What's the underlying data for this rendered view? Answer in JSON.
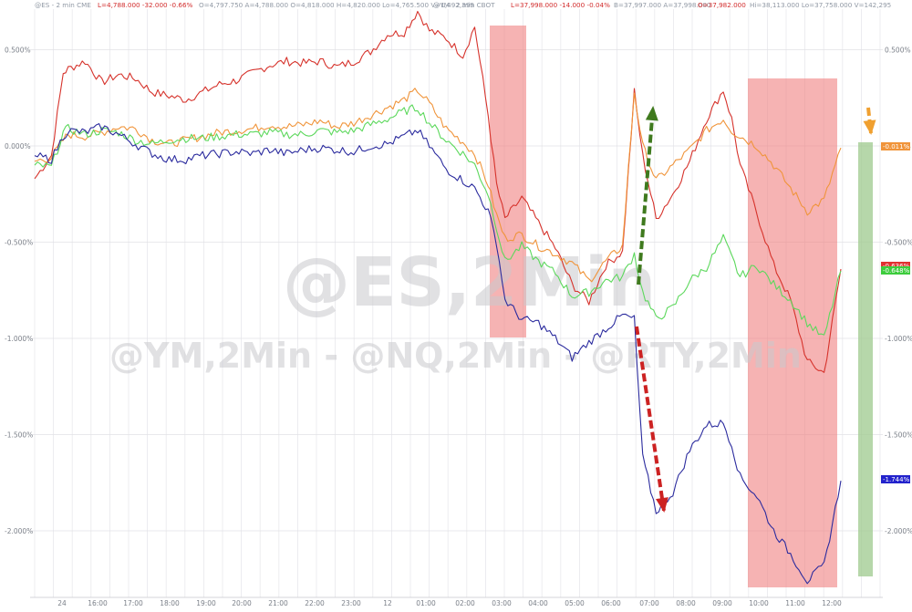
{
  "header": {
    "es": "@ES - 2 min  CME",
    "es_last": "L=4,788.000  -32.000  -0.66%",
    "es_rest": "O=4,797.750  A=4,788.000  O=4,818.000  H=4,820.000  Lo=4,765.500  V=1,492,399",
    "ym": "@YM - 2 min  CBOT",
    "ym_last": "L=37,998.000  -14.000  -0.04%",
    "ym_rest": "B=37,997.000  A=37,998.000",
    "ym_open": "O=37,982.000",
    "ym_tail": "Hi=38,113.000  Lo=37,758.000  V=142,295"
  },
  "watermark": {
    "main": "@ES,2Min",
    "secondary": "@YM,2Min - @NQ,2Min - @RTY,2Min"
  },
  "chart_data": {
    "type": "line",
    "x_ticks": [
      "24",
      "16:00",
      "17:00",
      "18:00",
      "19:00",
      "20:00",
      "21:00",
      "22:00",
      "23:00",
      "12",
      "01:00",
      "02:00",
      "03:00",
      "04:00",
      "05:00",
      "06:00",
      "07:00",
      "08:00",
      "09:00",
      "10:00",
      "11:00",
      "12:00"
    ],
    "y_ticks_left": [
      "0.500%",
      "0.000%",
      "-0.500%",
      "-1.000%",
      "-1.500%",
      "-2.000%"
    ],
    "y_ticks_right": [
      "0.500%",
      "0.000%",
      "-0.500%",
      "-1.000%",
      "-1.500%",
      "-2.000%"
    ],
    "ylim": [
      -2.28,
      0.72
    ],
    "grid": true,
    "x_index_range": [
      0,
      46
    ],
    "series": [
      {
        "color": "#d6322b",
        "end_label": "-0.636%",
        "points": [
          [
            0,
            -0.17
          ],
          [
            1,
            -0.05
          ],
          [
            1.7,
            0.38
          ],
          [
            2,
            0.4
          ],
          [
            3,
            0.44
          ],
          [
            4,
            0.33
          ],
          [
            5,
            0.37
          ],
          [
            6,
            0.35
          ],
          [
            7,
            0.28
          ],
          [
            8,
            0.26
          ],
          [
            9,
            0.24
          ],
          [
            10,
            0.28
          ],
          [
            11,
            0.32
          ],
          [
            12,
            0.34
          ],
          [
            13,
            0.38
          ],
          [
            14,
            0.42
          ],
          [
            15,
            0.44
          ],
          [
            16,
            0.43
          ],
          [
            17,
            0.44
          ],
          [
            18,
            0.41
          ],
          [
            19,
            0.44
          ],
          [
            20,
            0.49
          ],
          [
            21,
            0.58
          ],
          [
            22,
            0.59
          ],
          [
            22.8,
            0.7
          ],
          [
            23.5,
            0.6
          ],
          [
            24.5,
            0.56
          ],
          [
            25.5,
            0.47
          ],
          [
            26.2,
            0.62
          ],
          [
            27,
            0.16
          ],
          [
            27.5,
            -0.2
          ],
          [
            28,
            -0.38
          ],
          [
            29,
            -0.27
          ],
          [
            30,
            -0.4
          ],
          [
            31,
            -0.53
          ],
          [
            32,
            -0.72
          ],
          [
            33,
            -0.81
          ],
          [
            34,
            -0.62
          ],
          [
            35,
            -0.55
          ],
          [
            35.7,
            0.28
          ],
          [
            36.2,
            -0.05
          ],
          [
            37,
            -0.38
          ],
          [
            38,
            -0.25
          ],
          [
            39,
            -0.08
          ],
          [
            40,
            0.14
          ],
          [
            41,
            0.29
          ],
          [
            41.5,
            0.14
          ],
          [
            42,
            -0.1
          ],
          [
            43,
            -0.35
          ],
          [
            44,
            -0.62
          ],
          [
            45,
            -0.8
          ],
          [
            46,
            -1.12
          ],
          [
            47,
            -1.18
          ],
          [
            48,
            -0.64
          ]
        ]
      },
      {
        "color": "#f0943a",
        "end_label": "-0.011%",
        "points": [
          [
            0,
            -0.08
          ],
          [
            1,
            -0.06
          ],
          [
            1.7,
            0.03
          ],
          [
            2,
            0.06
          ],
          [
            3,
            0.05
          ],
          [
            4,
            0.07
          ],
          [
            5,
            0.1
          ],
          [
            6,
            0.09
          ],
          [
            7,
            0.03
          ],
          [
            8,
            0.01
          ],
          [
            9,
            0.03
          ],
          [
            10,
            0.05
          ],
          [
            11,
            0.07
          ],
          [
            12,
            0.08
          ],
          [
            13,
            0.09
          ],
          [
            14,
            0.11
          ],
          [
            15,
            0.1
          ],
          [
            16,
            0.11
          ],
          [
            17,
            0.13
          ],
          [
            18,
            0.1
          ],
          [
            19,
            0.12
          ],
          [
            20,
            0.16
          ],
          [
            21,
            0.2
          ],
          [
            22,
            0.24
          ],
          [
            22.8,
            0.29
          ],
          [
            23.5,
            0.22
          ],
          [
            24.5,
            0.09
          ],
          [
            25.5,
            0.02
          ],
          [
            26.2,
            -0.04
          ],
          [
            27,
            -0.2
          ],
          [
            27.5,
            -0.36
          ],
          [
            28,
            -0.48
          ],
          [
            29,
            -0.46
          ],
          [
            30,
            -0.52
          ],
          [
            31,
            -0.56
          ],
          [
            32,
            -0.61
          ],
          [
            33,
            -0.7
          ],
          [
            34,
            -0.6
          ],
          [
            35,
            -0.52
          ],
          [
            35.7,
            0.28
          ],
          [
            36.2,
            0.0
          ],
          [
            37,
            -0.18
          ],
          [
            38,
            -0.1
          ],
          [
            39,
            -0.02
          ],
          [
            40,
            0.08
          ],
          [
            41,
            0.14
          ],
          [
            41.5,
            0.08
          ],
          [
            42,
            0.05
          ],
          [
            43,
            0.0
          ],
          [
            44,
            -0.1
          ],
          [
            45,
            -0.22
          ],
          [
            46,
            -0.34
          ],
          [
            47,
            -0.28
          ],
          [
            48,
            -0.01
          ]
        ]
      },
      {
        "color": "#5cd85c",
        "end_label": "-0.648%",
        "points": [
          [
            0,
            -0.1
          ],
          [
            1,
            -0.11
          ],
          [
            1.7,
            0.07
          ],
          [
            2,
            0.09
          ],
          [
            3,
            0.06
          ],
          [
            4,
            0.08
          ],
          [
            5,
            0.07
          ],
          [
            6,
            0.03
          ],
          [
            7,
            0.01
          ],
          [
            8,
            0.03
          ],
          [
            9,
            0.04
          ],
          [
            10,
            0.04
          ],
          [
            11,
            0.05
          ],
          [
            12,
            0.06
          ],
          [
            13,
            0.06
          ],
          [
            14,
            0.07
          ],
          [
            15,
            0.06
          ],
          [
            16,
            0.06
          ],
          [
            17,
            0.08
          ],
          [
            18,
            0.07
          ],
          [
            19,
            0.08
          ],
          [
            20,
            0.11
          ],
          [
            21,
            0.14
          ],
          [
            22,
            0.18
          ],
          [
            22.8,
            0.2
          ],
          [
            23.5,
            0.12
          ],
          [
            24.5,
            0.03
          ],
          [
            25.5,
            -0.04
          ],
          [
            26.2,
            -0.1
          ],
          [
            27,
            -0.25
          ],
          [
            27.5,
            -0.42
          ],
          [
            28,
            -0.6
          ],
          [
            29,
            -0.52
          ],
          [
            30,
            -0.6
          ],
          [
            31,
            -0.66
          ],
          [
            32,
            -0.78
          ],
          [
            33,
            -0.76
          ],
          [
            34,
            -0.7
          ],
          [
            35,
            -0.68
          ],
          [
            35.7,
            -0.56
          ],
          [
            36.2,
            -0.76
          ],
          [
            37,
            -0.9
          ],
          [
            38,
            -0.84
          ],
          [
            39,
            -0.7
          ],
          [
            40,
            -0.63
          ],
          [
            41,
            -0.48
          ],
          [
            41.5,
            -0.58
          ],
          [
            42,
            -0.68
          ],
          [
            43,
            -0.62
          ],
          [
            44,
            -0.72
          ],
          [
            45,
            -0.8
          ],
          [
            46,
            -0.92
          ],
          [
            47,
            -1.0
          ],
          [
            48,
            -0.65
          ]
        ]
      },
      {
        "color": "#2b2b9e",
        "end_label": "-1.744%",
        "points": [
          [
            0,
            -0.05
          ],
          [
            1,
            -0.07
          ],
          [
            1.7,
            0.05
          ],
          [
            2,
            0.08
          ],
          [
            3,
            0.07
          ],
          [
            4,
            0.1
          ],
          [
            5,
            0.06
          ],
          [
            6,
            0.01
          ],
          [
            7,
            -0.04
          ],
          [
            8,
            -0.07
          ],
          [
            9,
            -0.07
          ],
          [
            10,
            -0.05
          ],
          [
            11,
            -0.04
          ],
          [
            12,
            -0.03
          ],
          [
            13,
            -0.04
          ],
          [
            14,
            -0.02
          ],
          [
            15,
            -0.04
          ],
          [
            16,
            -0.02
          ],
          [
            17,
            -0.01
          ],
          [
            18,
            -0.02
          ],
          [
            19,
            -0.03
          ],
          [
            20,
            0.0
          ],
          [
            21,
            0.01
          ],
          [
            22,
            0.05
          ],
          [
            22.8,
            0.08
          ],
          [
            23.5,
            0.0
          ],
          [
            24.5,
            -0.12
          ],
          [
            25.5,
            -0.18
          ],
          [
            26.2,
            -0.22
          ],
          [
            27,
            -0.34
          ],
          [
            27.5,
            -0.5
          ],
          [
            28,
            -0.8
          ],
          [
            29,
            -0.9
          ],
          [
            30,
            -0.92
          ],
          [
            31,
            -1.0
          ],
          [
            32,
            -1.1
          ],
          [
            33,
            -1.02
          ],
          [
            34,
            -0.95
          ],
          [
            35,
            -0.88
          ],
          [
            35.7,
            -0.9
          ],
          [
            36.2,
            -1.62
          ],
          [
            37,
            -1.9
          ],
          [
            38,
            -1.8
          ],
          [
            39,
            -1.58
          ],
          [
            40,
            -1.45
          ],
          [
            41,
            -1.44
          ],
          [
            41.5,
            -1.55
          ],
          [
            42,
            -1.72
          ],
          [
            43,
            -1.82
          ],
          [
            44,
            -2.0
          ],
          [
            45,
            -2.12
          ],
          [
            46,
            -2.26
          ],
          [
            47,
            -2.18
          ],
          [
            48,
            -1.74
          ]
        ]
      }
    ]
  },
  "annotations": {
    "highlight_red": "#f08080",
    "highlight_green": "#9ec98e",
    "arrow_green": "#3f7a1e",
    "arrow_red": "#cc2222",
    "arrow_orange": "#f0a030",
    "end_label_colors": {
      "red": "#e03030",
      "orange": "#f0943a",
      "green": "#3ccc3c",
      "blue": "#2222cc"
    }
  }
}
